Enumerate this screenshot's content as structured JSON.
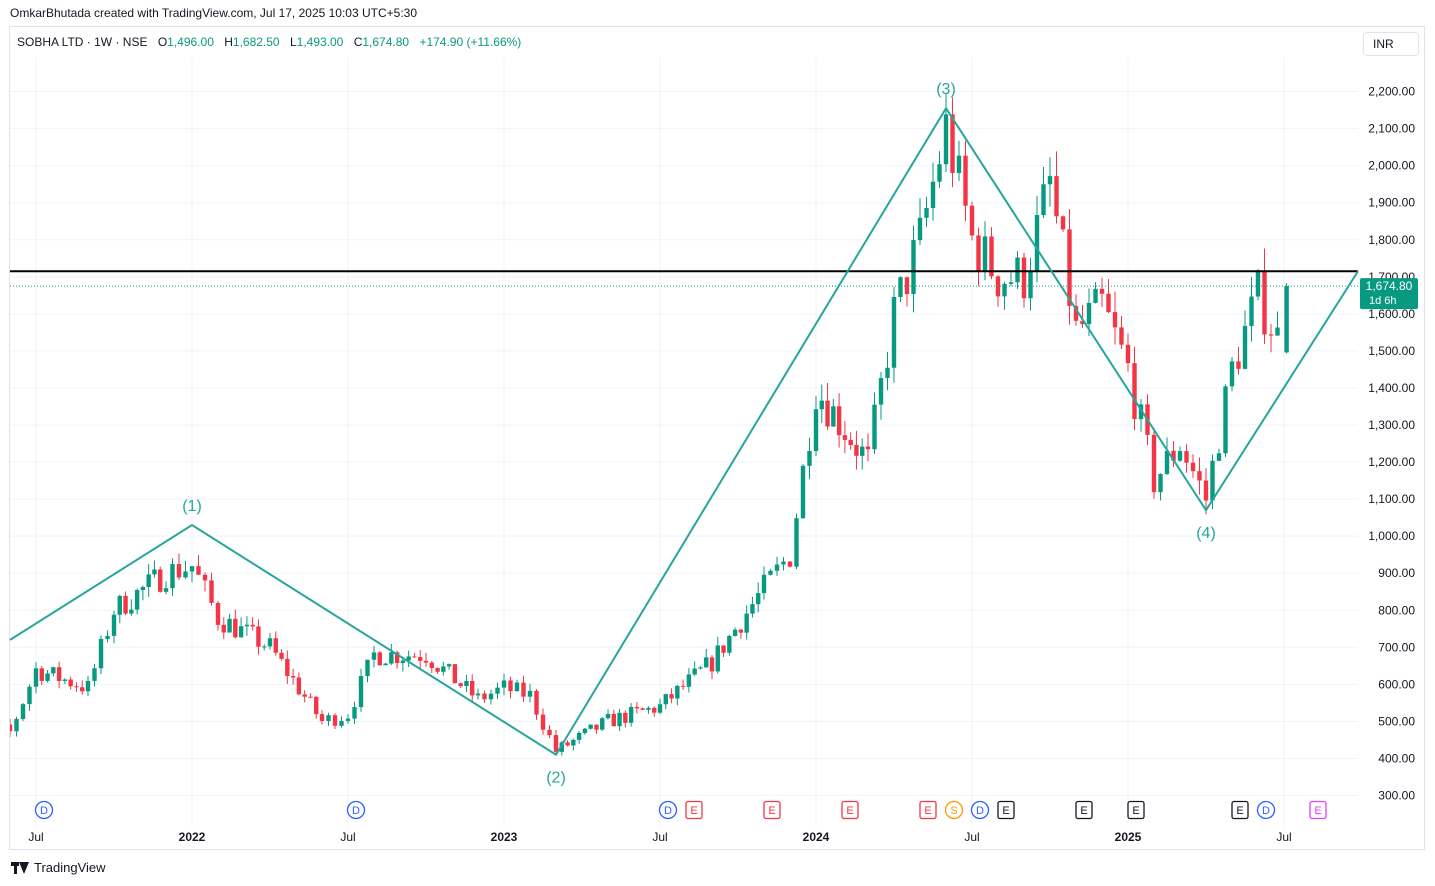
{
  "header": {
    "credit": "OmkarBhutada created with TradingView.com, Jul 17, 2025 10:03 UTC+5:30",
    "symbol": "SOBHA LTD · 1W · NSE",
    "open_label": "O",
    "open_value": "1,496.00",
    "high_label": "H",
    "high_value": "1,682.50",
    "low_label": "L",
    "low_value": "1,493.00",
    "close_label": "C",
    "close_value": "1,674.80",
    "change_value": "+174.90 (+11.66%)",
    "currency": "INR"
  },
  "footer": {
    "brand": "TradingView"
  },
  "colors": {
    "up": "#089981",
    "down": "#f23645",
    "wave": "#26a69a",
    "level": "#000000",
    "grid": "#f0f3fa",
    "dividend": "#2962ff",
    "earnings": "#131722",
    "split": "#ff9800",
    "earnings_future": "#e040fb"
  },
  "chart_data": {
    "type": "candlestick",
    "interval": "1W",
    "y_axis": {
      "min": 300,
      "max": 2200,
      "ticks": [
        "300.00",
        "400.00",
        "500.00",
        "600.00",
        "700.00",
        "800.00",
        "900.00",
        "1,000.00",
        "1,100.00",
        "1,200.00",
        "1,300.00",
        "1,400.00",
        "1,500.00",
        "1,600.00",
        "1,700.00",
        "1,800.00",
        "1,900.00",
        "2,000.00",
        "2,100.00",
        "2,200.00"
      ]
    },
    "x_axis": {
      "ticks": [
        "Jul",
        "2022",
        "Jul",
        "2023",
        "Jul",
        "2024",
        "Jul",
        "2025",
        "Jul"
      ]
    },
    "last_price": {
      "value": "1,674.80",
      "countdown": "1d 6h"
    },
    "horizontal_level": 1715,
    "elliott_waves": [
      {
        "label": "",
        "date": "2021-04",
        "price": 720
      },
      {
        "label": "(1)",
        "date": "2022-01",
        "price": 1030
      },
      {
        "label": "(2)",
        "date": "2023-03",
        "price": 410
      },
      {
        "label": "(3)",
        "date": "2024-06",
        "price": 2155
      },
      {
        "label": "(4)",
        "date": "2025-04",
        "price": 1070
      },
      {
        "label": "",
        "date": "2025-09",
        "price": 1715
      }
    ],
    "anchors": [
      {
        "date": "2021-04",
        "price": 500
      },
      {
        "date": "2021-06",
        "price": 470
      },
      {
        "date": "2021-07",
        "price": 640
      },
      {
        "date": "2021-09",
        "price": 590
      },
      {
        "date": "2021-10",
        "price": 800
      },
      {
        "date": "2021-12",
        "price": 900
      },
      {
        "date": "2022-01",
        "price": 920
      },
      {
        "date": "2022-02",
        "price": 780
      },
      {
        "date": "2022-04",
        "price": 700
      },
      {
        "date": "2022-06",
        "price": 500
      },
      {
        "date": "2022-07",
        "price": 520
      },
      {
        "date": "2022-08",
        "price": 680
      },
      {
        "date": "2022-10",
        "price": 680
      },
      {
        "date": "2022-12",
        "price": 560
      },
      {
        "date": "2023-01",
        "price": 590
      },
      {
        "date": "2023-02",
        "price": 570
      },
      {
        "date": "2023-03",
        "price": 420
      },
      {
        "date": "2023-05",
        "price": 500
      },
      {
        "date": "2023-07",
        "price": 540
      },
      {
        "date": "2023-09",
        "price": 660
      },
      {
        "date": "2023-11",
        "price": 860
      },
      {
        "date": "2023-12",
        "price": 950
      },
      {
        "date": "2024-01",
        "price": 1400
      },
      {
        "date": "2024-03",
        "price": 1200
      },
      {
        "date": "2024-04",
        "price": 1600
      },
      {
        "date": "2024-05",
        "price": 1800
      },
      {
        "date": "2024-06",
        "price": 2100
      },
      {
        "date": "2024-07",
        "price": 1800
      },
      {
        "date": "2024-08",
        "price": 1700
      },
      {
        "date": "2024-09",
        "price": 1700
      },
      {
        "date": "2024-10",
        "price": 1950
      },
      {
        "date": "2024-11",
        "price": 1550
      },
      {
        "date": "2024-12",
        "price": 1620
      },
      {
        "date": "2025-01",
        "price": 1450
      },
      {
        "date": "2025-02",
        "price": 1150
      },
      {
        "date": "2025-03",
        "price": 1250
      },
      {
        "date": "2025-04",
        "price": 1100
      },
      {
        "date": "2025-05",
        "price": 1450
      },
      {
        "date": "2025-06",
        "price": 1650
      },
      {
        "date": "2025-07",
        "price": 1496
      }
    ],
    "last_candle": {
      "open": 1496.0,
      "high": 1682.5,
      "low": 1493.0,
      "close": 1674.8
    },
    "events": [
      {
        "type": "D",
        "date": "2021-07"
      },
      {
        "type": "D",
        "date": "2022-07"
      },
      {
        "type": "D",
        "date": "2023-07"
      },
      {
        "type": "E",
        "date": "2023-08"
      },
      {
        "type": "E",
        "date": "2023-11"
      },
      {
        "type": "E",
        "date": "2024-02"
      },
      {
        "type": "E",
        "date": "2024-05"
      },
      {
        "type": "S",
        "date": "2024-06"
      },
      {
        "type": "D",
        "date": "2024-07"
      },
      {
        "type": "E",
        "date": "2024-08"
      },
      {
        "type": "E",
        "date": "2024-11"
      },
      {
        "type": "E",
        "date": "2025-01"
      },
      {
        "type": "E",
        "date": "2025-05"
      },
      {
        "type": "D",
        "date": "2025-06"
      },
      {
        "type": "E",
        "date": "2025-08"
      }
    ]
  }
}
